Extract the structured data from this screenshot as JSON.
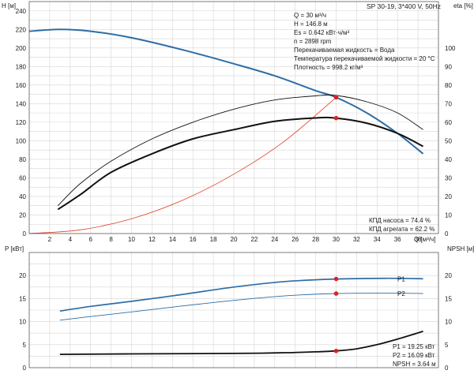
{
  "header": {
    "title": "SP 30-19, 3*400 V, 50Hz"
  },
  "info_block": [
    "Q = 30 м³/ч",
    "H = 146.8 м",
    "Es = 0.642 кВт·ч/м³",
    "n = 2898 rpm",
    "Перекачиваемая жидкость = Вода",
    "Температура перекачиваемой жидкости = 20 °C",
    "Плотность = 998.2 кг/м³"
  ],
  "efficiency_block": [
    "КПД насоса = 74.4 %",
    "КПД агрегата = 62.2 %"
  ],
  "power_block": [
    "P1 = 19.25 кВт",
    "P2 = 16.09 кВт",
    "NPSH = 3.64 м"
  ],
  "colors": {
    "head": "#2e6da4",
    "efficiency": "#111111",
    "system": "#e0402a",
    "duty_point": "#e02020",
    "power": "#2e6da4",
    "npsh": "#111111"
  },
  "chart_data": [
    {
      "type": "line",
      "panel": "head",
      "xlabel": "Q [м³/ч]",
      "ylabel": "H [м]",
      "y2label": "eta [%]",
      "xlim": [
        0,
        40
      ],
      "ylim": [
        0,
        250
      ],
      "y2lim": [
        0,
        125
      ],
      "xticks": [
        2,
        4,
        6,
        8,
        10,
        12,
        14,
        16,
        18,
        20,
        22,
        24,
        26,
        28,
        30,
        32,
        34,
        36,
        38
      ],
      "yticks": [
        0,
        20,
        40,
        60,
        80,
        100,
        120,
        140,
        160,
        180,
        200,
        220,
        240
      ],
      "y2ticks": [
        0,
        10,
        20,
        30,
        40,
        50,
        60,
        70,
        80,
        90,
        100
      ],
      "series": [
        {
          "key": "head",
          "axis": "left",
          "x": [
            0,
            3,
            6,
            10,
            15,
            20,
            24,
            28,
            30,
            33,
            36,
            38.5
          ],
          "y": [
            218,
            220,
            218,
            211,
            198,
            183,
            170,
            154,
            146.8,
            130,
            108,
            86
          ]
        },
        {
          "key": "system",
          "axis": "left",
          "x": [
            0,
            5,
            10,
            15,
            20,
            25,
            30
          ],
          "y": [
            0,
            4,
            16,
            36,
            64,
            100,
            146.8
          ]
        },
        {
          "key": "eta_pump",
          "axis": "right",
          "x": [
            2.8,
            5,
            8,
            12,
            16,
            20,
            24,
            28,
            30,
            33,
            36,
            38.5
          ],
          "y": [
            15,
            27,
            39,
            51,
            60,
            67,
            72,
            74.2,
            74.4,
            71,
            65,
            56
          ]
        },
        {
          "key": "eta_unit",
          "axis": "right",
          "x": [
            2.8,
            5,
            8,
            12,
            16,
            20,
            24,
            28,
            30,
            33,
            36,
            38.5
          ],
          "y": [
            13,
            21,
            33,
            43,
            51,
            56,
            60.5,
            62.3,
            62.2,
            59.5,
            54,
            47
          ]
        }
      ],
      "duty_points": [
        {
          "x": 30,
          "y": 146.8,
          "axis": "left"
        },
        {
          "x": 30,
          "y": 62.2,
          "axis": "right"
        }
      ]
    },
    {
      "type": "line",
      "panel": "power",
      "ylabel": "P [кВт]",
      "y2label": "NPSH [м]",
      "xlim": [
        0,
        40
      ],
      "ylim": [
        0,
        25
      ],
      "y2lim": [
        0,
        25
      ],
      "yticks": [
        0,
        5,
        10,
        15,
        20
      ],
      "y2ticks": [
        0,
        5,
        10,
        15,
        20
      ],
      "series": [
        {
          "key": "P1",
          "name": "P1",
          "axis": "left",
          "x": [
            3,
            6,
            10,
            15,
            20,
            25,
            30,
            35,
            38.5
          ],
          "y": [
            12.3,
            13.3,
            14.4,
            15.9,
            17.5,
            18.7,
            19.25,
            19.4,
            19.3
          ]
        },
        {
          "key": "P2",
          "name": "P2",
          "axis": "left",
          "x": [
            3,
            6,
            10,
            15,
            20,
            25,
            30,
            35,
            38.5
          ],
          "y": [
            10.3,
            11.1,
            12.1,
            13.4,
            14.6,
            15.6,
            16.09,
            16.2,
            16.1
          ]
        },
        {
          "key": "npsh",
          "axis": "right",
          "x": [
            3,
            10,
            20,
            25,
            28,
            30,
            32,
            34,
            36,
            38.5
          ],
          "y": [
            2.9,
            3.0,
            3.1,
            3.25,
            3.45,
            3.64,
            4.1,
            5.0,
            6.2,
            7.9
          ]
        }
      ],
      "duty_points": [
        {
          "x": 30,
          "y": 19.25,
          "axis": "left"
        },
        {
          "x": 30,
          "y": 16.09,
          "axis": "left"
        },
        {
          "x": 30,
          "y": 3.64,
          "axis": "right"
        }
      ]
    }
  ]
}
